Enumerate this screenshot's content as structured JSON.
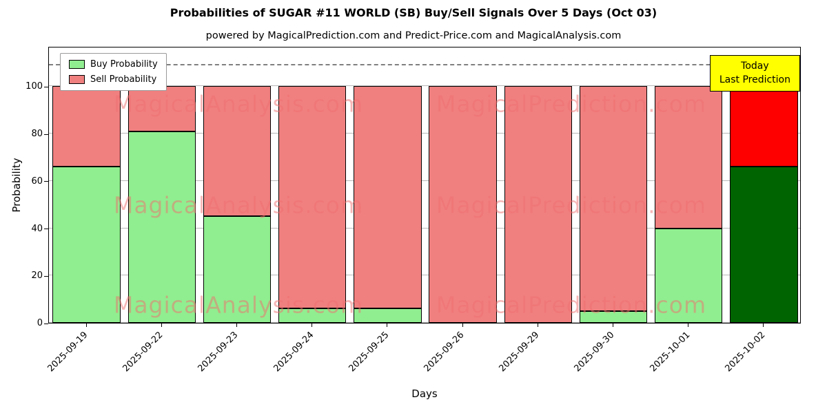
{
  "figure": {
    "title": "Probabilities of SUGAR #11 WORLD (SB) Buy/Sell Signals Over 5 Days (Oct 03)",
    "subtitle": "powered by MagicalPrediction.com and Predict-Price.com and MagicalAnalysis.com"
  },
  "chart_data": {
    "type": "bar",
    "stacked": true,
    "title": "Probabilities of SUGAR #11 WORLD (SB) Buy/Sell Signals Over 5 Days (Oct 03)",
    "subtitle": "powered by MagicalPrediction.com and Predict-Price.com and MagicalAnalysis.com",
    "xlabel": "Days",
    "ylabel": "Probability",
    "categories": [
      "2025-09-19",
      "2025-09-22",
      "2025-09-23",
      "2025-09-24",
      "2025-09-25",
      "2025-09-26",
      "2025-09-29",
      "2025-09-30",
      "2025-10-01",
      "2025-10-02"
    ],
    "series": [
      {
        "name": "Buy Probability",
        "values": [
          66,
          81,
          45,
          6,
          6,
          0,
          0,
          5,
          40,
          66
        ]
      },
      {
        "name": "Sell Probability",
        "values": [
          34,
          19,
          55,
          94,
          94,
          100,
          100,
          95,
          60,
          34
        ]
      }
    ],
    "ylim": [
      0,
      117
    ],
    "yticks": [
      0,
      20,
      40,
      60,
      80,
      100
    ],
    "grid": true,
    "xticks_rotation": 45,
    "dashed_line_y": 110,
    "today_index": 9,
    "colors": {
      "buy": "#90EE90",
      "sell": "#F08080",
      "today_buy": "#006400",
      "today_sell": "#FF0000",
      "bar_edge": "#000000",
      "grid": "#b8b8b8",
      "dashed_line": "#7f7f7f",
      "watermark": "#f07070",
      "annotation_bg": "#FFFF00"
    },
    "legend": {
      "position": "upper-left",
      "entries": [
        {
          "label": "Buy Probability",
          "color": "#90EE90"
        },
        {
          "label": "Sell Probability",
          "color": "#F08080"
        }
      ]
    },
    "annotation": {
      "lines": [
        "Today",
        "Last Prediction"
      ]
    },
    "watermarks": [
      {
        "text": "MagicalAnalysis.com"
      },
      {
        "text": "MagicalPrediction.com"
      }
    ]
  }
}
